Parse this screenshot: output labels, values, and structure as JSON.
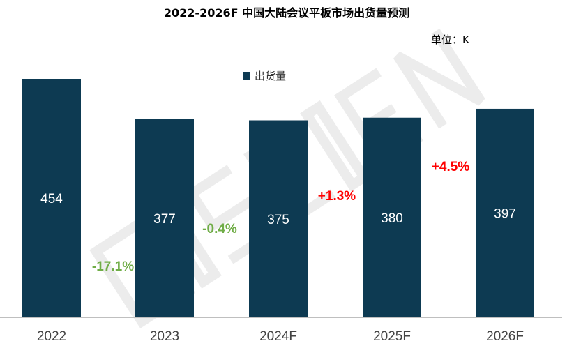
{
  "title": "2022-2026F 中国大陆会议平板市场出货量预测",
  "unit_label": "单位：K",
  "watermark": "DISCIEN",
  "colors": {
    "bar": "#0d3a52",
    "negative": "#70ad47",
    "positive": "#ff0000",
    "axis": "#bfbfbf"
  },
  "chart_data": {
    "type": "bar",
    "categories": [
      "2022",
      "2023",
      "2024F",
      "2025F",
      "2026F"
    ],
    "series": [
      {
        "name": "出货量",
        "values": [
          454,
          377,
          375,
          380,
          397
        ]
      }
    ],
    "growth_labels": [
      {
        "text": "-17.1%",
        "sign": "negative"
      },
      {
        "text": "-0.4%",
        "sign": "negative"
      },
      {
        "text": "+1.3%",
        "sign": "positive"
      },
      {
        "text": "+4.5%",
        "sign": "positive"
      }
    ],
    "legend": {
      "placement": "top-center"
    },
    "grid": false,
    "ylim": [
      0,
      454
    ]
  }
}
